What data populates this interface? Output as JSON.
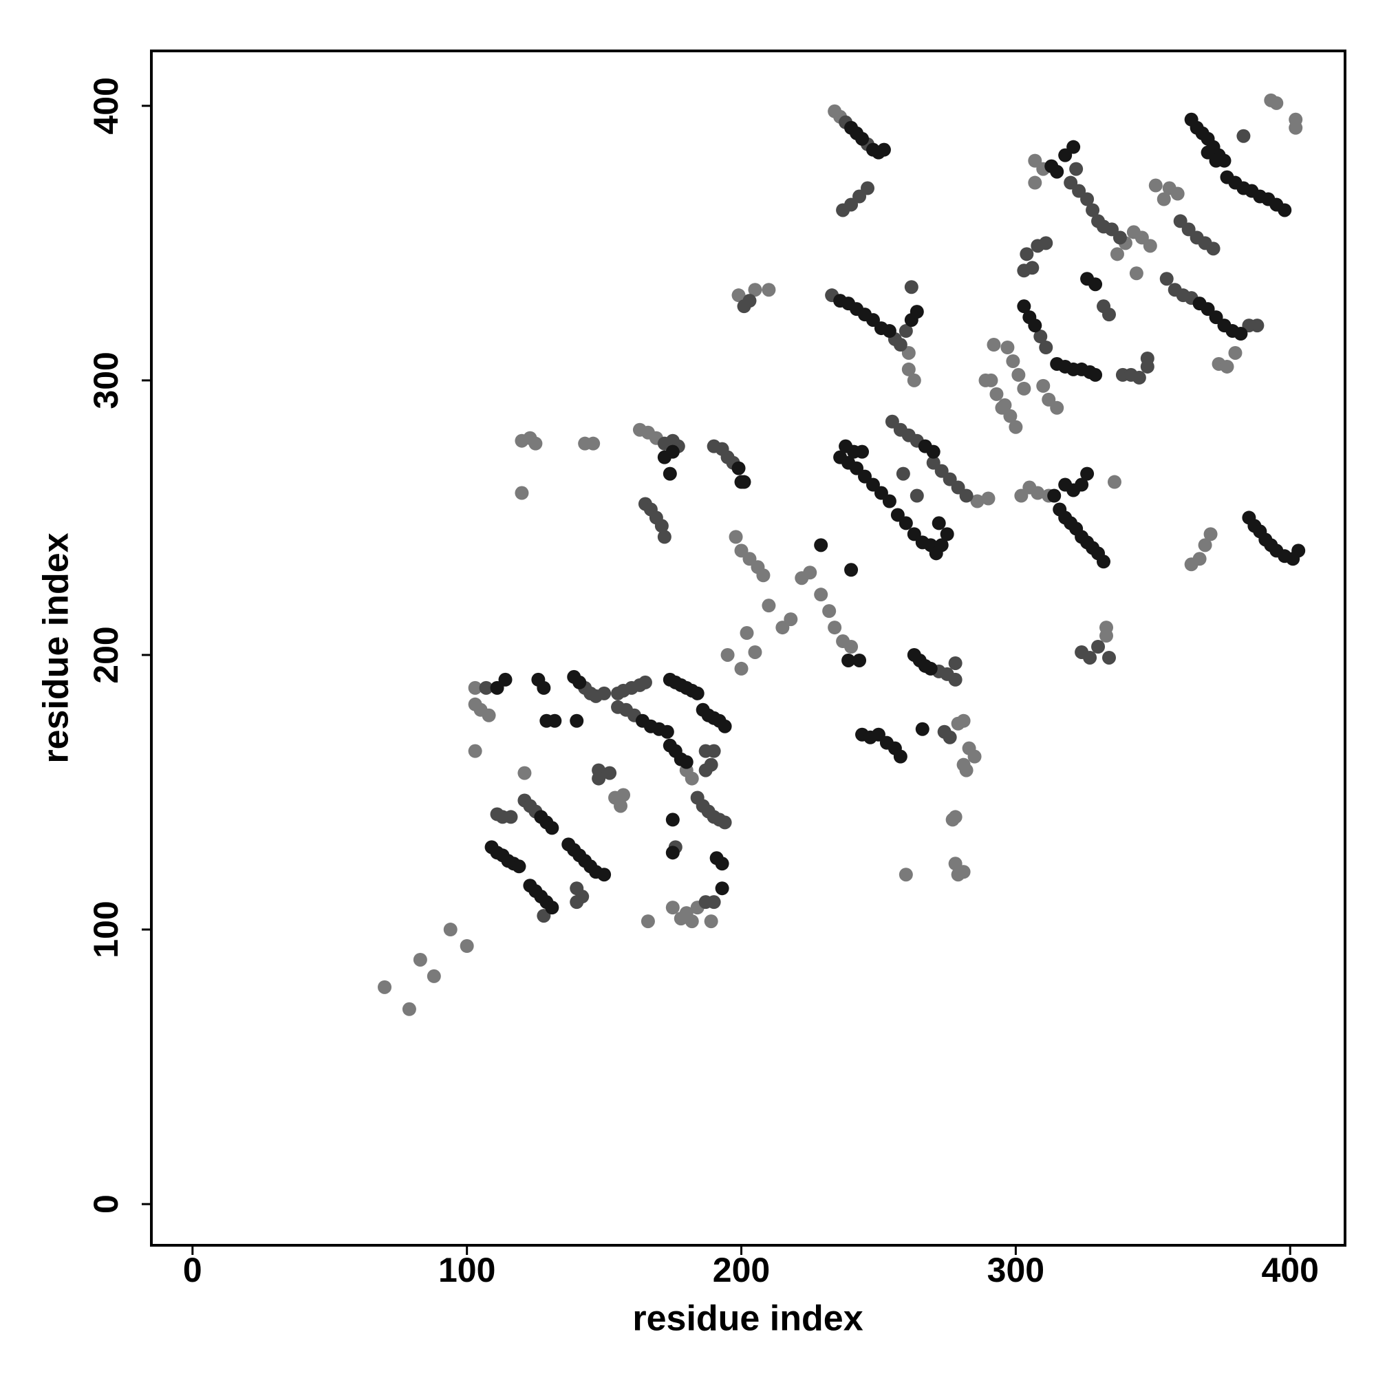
{
  "chart_data": {
    "type": "scatter",
    "xlabel": "residue index",
    "ylabel": "residue index",
    "xlim": [
      -15,
      420
    ],
    "ylim": [
      -15,
      420
    ],
    "xticks": [
      0,
      100,
      200,
      300,
      400
    ],
    "yticks": [
      0,
      100,
      200,
      300,
      400
    ],
    "grid": false,
    "series": [
      {
        "color": "#7a7a7a",
        "x": [
          70,
          79,
          83,
          88,
          94,
          100,
          103,
          105,
          108,
          103,
          103,
          121,
          166,
          195,
          200,
          202,
          205,
          210,
          215,
          218,
          222,
          225,
          229,
          232,
          234,
          120,
          123,
          125,
          120,
          143,
          146,
          163,
          166,
          169,
          198,
          200,
          203,
          206,
          208,
          199,
          205,
          210,
          261,
          263,
          261,
          279,
          281,
          283,
          285,
          281,
          282,
          278,
          277,
          278,
          279,
          281,
          260,
          297,
          299,
          301,
          303,
          296,
          298,
          300,
          291,
          293,
          295,
          310,
          312,
          315,
          292,
          289,
          302,
          305,
          308,
          312,
          307,
          310,
          307,
          336,
          333,
          333,
          337,
          340,
          343,
          346,
          349,
          344,
          351,
          354,
          356,
          359,
          364,
          367,
          369,
          371,
          374,
          377,
          380,
          393,
          395,
          402,
          402,
          175,
          178,
          180,
          182,
          184,
          189,
          154,
          157,
          156,
          180,
          182,
          286,
          290,
          237,
          240,
          234,
          236
        ],
        "values": [
          79,
          71,
          89,
          83,
          100,
          94,
          188,
          180,
          178,
          182,
          165,
          157,
          103,
          200,
          195,
          208,
          201,
          218,
          210,
          213,
          228,
          230,
          222,
          216,
          210,
          278,
          279,
          277,
          259,
          277,
          277,
          282,
          281,
          279,
          243,
          238,
          235,
          232,
          229,
          331,
          333,
          333,
          304,
          300,
          310,
          175,
          176,
          166,
          163,
          160,
          158,
          141,
          140,
          124,
          120,
          121,
          120,
          312,
          307,
          302,
          297,
          291,
          287,
          283,
          300,
          295,
          290,
          298,
          293,
          290,
          313,
          300,
          258,
          261,
          259,
          258,
          372,
          377,
          380,
          263,
          207,
          210,
          346,
          350,
          354,
          352,
          349,
          339,
          371,
          366,
          370,
          368,
          233,
          235,
          240,
          244,
          306,
          305,
          310,
          402,
          401,
          395,
          392,
          108,
          104,
          106,
          103,
          108,
          103,
          148,
          149,
          145,
          158,
          155,
          256,
          257,
          205,
          203,
          398,
          396
        ]
      },
      {
        "color": "#4a4a4a",
        "x": [
          107,
          111,
          113,
          116,
          121,
          123,
          125,
          128,
          140,
          142,
          140,
          148,
          152,
          148,
          143,
          145,
          147,
          150,
          155,
          157,
          160,
          163,
          165,
          155,
          158,
          161,
          176,
          187,
          190,
          187,
          189,
          184,
          186,
          188,
          190,
          192,
          194,
          187,
          190,
          172,
          175,
          177,
          165,
          167,
          169,
          171,
          172,
          190,
          193,
          195,
          197,
          201,
          203,
          237,
          240,
          243,
          246,
          233,
          256,
          258,
          260,
          262,
          255,
          258,
          261,
          264,
          264,
          259,
          270,
          273,
          276,
          279,
          282,
          272,
          275,
          278,
          278,
          274,
          276,
          304,
          306,
          308,
          311,
          303,
          309,
          311,
          322,
          339,
          342,
          345,
          348,
          348,
          320,
          323,
          326,
          328,
          330,
          332,
          335,
          338,
          332,
          334,
          324,
          327,
          330,
          334,
          355,
          358,
          361,
          364,
          360,
          363,
          366,
          369,
          372,
          385,
          388,
          383,
          238,
          246
        ],
        "values": [
          188,
          142,
          141,
          141,
          147,
          145,
          143,
          105,
          115,
          112,
          110,
          158,
          157,
          155,
          188,
          186,
          185,
          186,
          186,
          187,
          188,
          189,
          190,
          181,
          180,
          178,
          130,
          165,
          165,
          158,
          160,
          148,
          145,
          143,
          141,
          140,
          139,
          110,
          110,
          277,
          278,
          276,
          255,
          253,
          250,
          247,
          243,
          276,
          275,
          272,
          270,
          327,
          329,
          362,
          364,
          367,
          370,
          331,
          315,
          313,
          318,
          334,
          285,
          282,
          280,
          278,
          258,
          266,
          270,
          267,
          264,
          261,
          258,
          194,
          193,
          191,
          197,
          172,
          170,
          346,
          341,
          349,
          350,
          340,
          316,
          312,
          377,
          302,
          302,
          301,
          305,
          308,
          372,
          369,
          366,
          362,
          358,
          356,
          355,
          352,
          327,
          324,
          201,
          199,
          203,
          199,
          337,
          333,
          331,
          330,
          358,
          355,
          352,
          350,
          348,
          320,
          320,
          389,
          394,
          386
        ]
      },
      {
        "color": "#161616",
        "x": [
          114,
          111,
          109,
          111,
          113,
          115,
          117,
          119,
          127,
          129,
          131,
          123,
          125,
          127,
          129,
          131,
          126,
          128,
          129,
          132,
          140,
          137,
          139,
          141,
          143,
          145,
          147,
          150,
          139,
          141,
          164,
          167,
          170,
          173,
          174,
          176,
          178,
          180,
          182,
          184,
          174,
          176,
          178,
          180,
          175,
          175,
          186,
          188,
          190,
          192,
          194,
          191,
          193,
          193,
          172,
          175,
          174,
          199,
          201,
          200,
          240,
          242,
          244,
          248,
          250,
          252,
          236,
          239,
          242,
          245,
          248,
          251,
          254,
          262,
          264,
          236,
          239,
          242,
          245,
          248,
          251,
          254,
          238,
          241,
          244,
          267,
          270,
          257,
          260,
          263,
          266,
          269,
          271,
          273,
          275,
          272,
          243,
          239,
          263,
          265,
          267,
          269,
          244,
          247,
          250,
          253,
          256,
          258,
          266,
          229,
          240,
          303,
          305,
          307,
          315,
          318,
          321,
          324,
          327,
          329,
          313,
          315,
          318,
          321,
          314,
          316,
          318,
          320,
          322,
          324,
          326,
          328,
          330,
          332,
          318,
          321,
          324,
          326,
          326,
          329,
          367,
          370,
          373,
          376,
          379,
          382,
          364,
          366,
          368,
          370,
          372,
          374,
          376,
          370,
          373,
          377,
          380,
          383,
          386,
          389,
          392,
          395,
          398,
          385,
          387,
          389,
          391,
          393,
          395,
          398,
          401,
          403
        ],
        "values": [
          191,
          188,
          130,
          128,
          127,
          125,
          124,
          123,
          141,
          139,
          137,
          116,
          114,
          112,
          110,
          108,
          191,
          188,
          176,
          176,
          176,
          131,
          129,
          127,
          125,
          123,
          121,
          120,
          192,
          190,
          176,
          174,
          173,
          172,
          191,
          190,
          189,
          188,
          187,
          186,
          167,
          165,
          162,
          161,
          140,
          128,
          180,
          178,
          177,
          176,
          174,
          126,
          124,
          115,
          272,
          274,
          266,
          268,
          263,
          263,
          392,
          390,
          388,
          384,
          383,
          384,
          329,
          328,
          326,
          324,
          322,
          319,
          318,
          322,
          325,
          272,
          270,
          268,
          265,
          262,
          259,
          256,
          276,
          274,
          274,
          276,
          274,
          251,
          248,
          244,
          241,
          240,
          237,
          240,
          244,
          248,
          198,
          198,
          200,
          198,
          196,
          195,
          171,
          170,
          171,
          168,
          166,
          163,
          173,
          240,
          231,
          327,
          323,
          320,
          306,
          305,
          304,
          304,
          303,
          302,
          378,
          376,
          382,
          385,
          258,
          253,
          250,
          248,
          246,
          243,
          241,
          239,
          237,
          234,
          262,
          260,
          262,
          266,
          337,
          335,
          328,
          326,
          323,
          320,
          318,
          317,
          395,
          392,
          390,
          388,
          385,
          382,
          380,
          383,
          380,
          374,
          372,
          370,
          369,
          367,
          366,
          364,
          362,
          250,
          247,
          245,
          242,
          240,
          238,
          236,
          235,
          238
        ]
      }
    ]
  }
}
